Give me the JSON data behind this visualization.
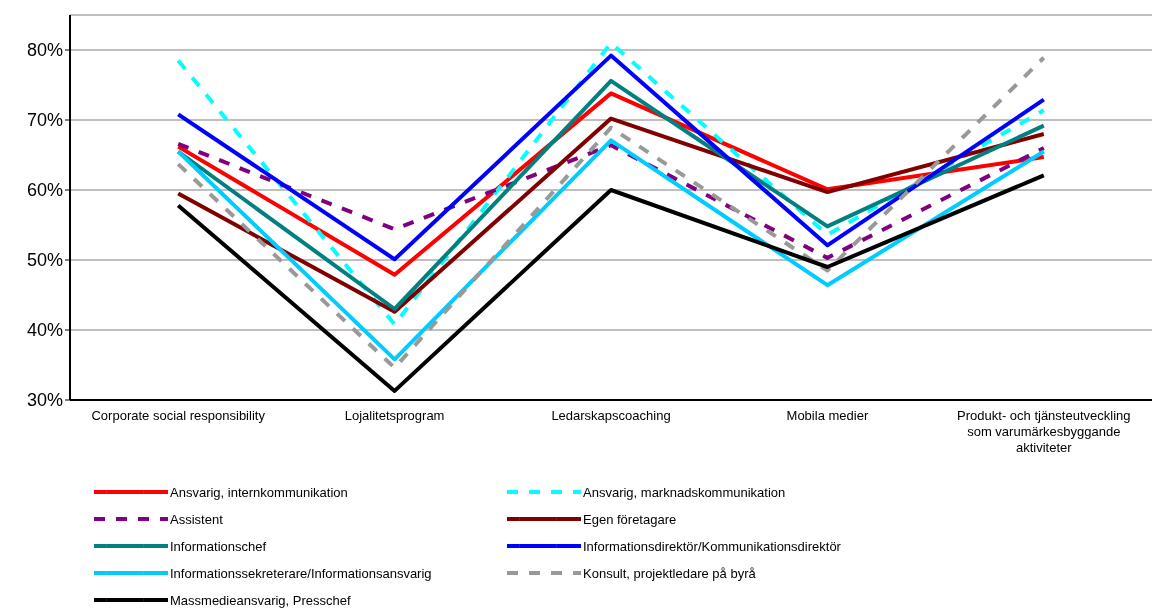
{
  "chart_data": {
    "type": "line",
    "categories": [
      "Corporate social responsibility",
      "Lojalitetsprogram",
      "Ledarskapscoaching",
      "Mobila medier",
      "Produkt- och tjänsteutveckling som varumärkesbyggande aktiviteter"
    ],
    "series": [
      {
        "name": "Ansvarig, internkommunikation",
        "color": "#ff0000",
        "line_style": "solid",
        "values": [
          66.2,
          47.9,
          73.8,
          60.1,
          64.7
        ]
      },
      {
        "name": "Ansvarig, marknadskommunikation",
        "color": "#00ffff",
        "line_style": "dashed",
        "values": [
          78.5,
          40.8,
          81,
          53.6,
          71.4
        ]
      },
      {
        "name": "Assistent",
        "color": "#800080",
        "line_style": "dashed",
        "values": [
          66.6,
          54.4,
          66.4,
          50.3,
          66
        ]
      },
      {
        "name": "Egen företagare",
        "color": "#800000",
        "line_style": "solid",
        "values": [
          59.5,
          42.6,
          70.2,
          59.7,
          68
        ]
      },
      {
        "name": "Informationschef",
        "color": "#008080",
        "line_style": "solid",
        "values": [
          65.5,
          43,
          75.6,
          54.8,
          69.2
        ]
      },
      {
        "name": "Informationsdirektör/Kommunikationsdirektör",
        "color": "#0000ff",
        "line_style": "solid",
        "values": [
          70.8,
          50.1,
          79.2,
          52.1,
          72.9
        ]
      },
      {
        "name": "Informationssekreterare/Informationsansvarig",
        "color": "#00ccff",
        "line_style": "solid",
        "values": [
          65.5,
          35.8,
          67.1,
          46.4,
          65.5
        ]
      },
      {
        "name": "Konsult, projektledare på byrå",
        "color": "#999999",
        "line_style": "dashed",
        "values": [
          63.7,
          34.6,
          68.9,
          48.5,
          78.9
        ]
      },
      {
        "name": "Massmedieansvarig, Presschef",
        "color": "#000000",
        "line_style": "solid",
        "values": [
          57.8,
          31.3,
          60,
          49,
          62.1
        ]
      }
    ],
    "ylim": [
      30,
      85
    ],
    "yticks": [
      {
        "value": 30,
        "label": "30%"
      },
      {
        "value": 40,
        "label": "40%"
      },
      {
        "value": 50,
        "label": "50%"
      },
      {
        "value": 60,
        "label": "60%"
      },
      {
        "value": 70,
        "label": "70%"
      },
      {
        "value": 80,
        "label": "80%"
      }
    ],
    "grid": "y",
    "legend": "bottom",
    "marker": "none"
  }
}
